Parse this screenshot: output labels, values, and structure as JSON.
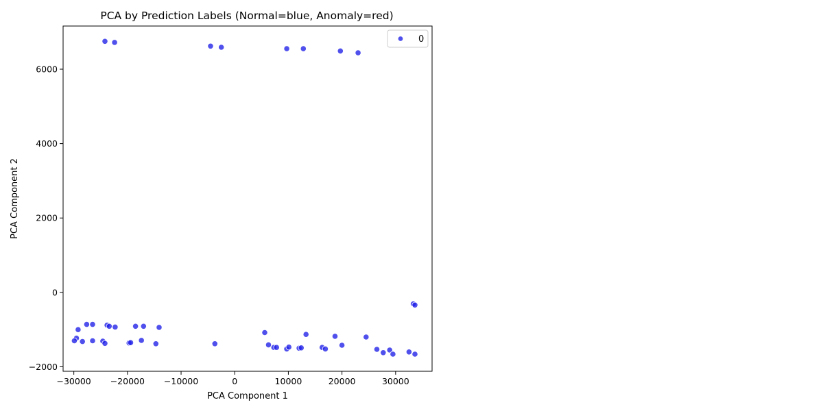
{
  "chart_data": {
    "type": "scatter",
    "title": "PCA by Prediction Labels (Normal=blue, Anomaly=red)",
    "xlabel": "PCA Component 1",
    "ylabel": "PCA Component 2",
    "xlim": [
      -32000,
      36800
    ],
    "ylim": [
      -2120,
      7160
    ],
    "xticks": [
      -30000,
      -20000,
      -10000,
      0,
      10000,
      20000,
      30000
    ],
    "xtick_labels": [
      "−30000",
      "−20000",
      "−10000",
      "0",
      "10000",
      "20000",
      "30000"
    ],
    "yticks": [
      -2000,
      0,
      2000,
      4000,
      6000
    ],
    "ytick_labels": [
      "−2000",
      "0",
      "2000",
      "4000",
      "6000"
    ],
    "grid": false,
    "legend_position": "top-right",
    "series": [
      {
        "name": "0",
        "color": "#1f1fe8",
        "points": [
          [
            -24200,
            6750
          ],
          [
            -22400,
            6720
          ],
          [
            -4500,
            6620
          ],
          [
            -2500,
            6590
          ],
          [
            9700,
            6550
          ],
          [
            12800,
            6550
          ],
          [
            19700,
            6490
          ],
          [
            23000,
            6440
          ],
          [
            -27600,
            -860
          ],
          [
            -26500,
            -860
          ],
          [
            -23800,
            -880
          ],
          [
            -23400,
            -910
          ],
          [
            -22300,
            -930
          ],
          [
            -18500,
            -910
          ],
          [
            -17000,
            -910
          ],
          [
            -14100,
            -940
          ],
          [
            -29200,
            -1000
          ],
          [
            -29500,
            -1230
          ],
          [
            -29900,
            -1300
          ],
          [
            -28400,
            -1320
          ],
          [
            -26500,
            -1300
          ],
          [
            -24600,
            -1310
          ],
          [
            -24200,
            -1370
          ],
          [
            -19700,
            -1360
          ],
          [
            -19400,
            -1350
          ],
          [
            -17400,
            -1290
          ],
          [
            -14700,
            -1380
          ],
          [
            -3700,
            -1380
          ],
          [
            5600,
            -1080
          ],
          [
            6300,
            -1410
          ],
          [
            7300,
            -1480
          ],
          [
            7800,
            -1480
          ],
          [
            9700,
            -1520
          ],
          [
            10100,
            -1470
          ],
          [
            12000,
            -1500
          ],
          [
            12400,
            -1490
          ],
          [
            13300,
            -1130
          ],
          [
            16300,
            -1480
          ],
          [
            16900,
            -1520
          ],
          [
            18700,
            -1180
          ],
          [
            20000,
            -1420
          ],
          [
            24500,
            -1200
          ],
          [
            26500,
            -1530
          ],
          [
            27700,
            -1620
          ],
          [
            28900,
            -1550
          ],
          [
            29500,
            -1660
          ],
          [
            32500,
            -1600
          ],
          [
            33600,
            -1660
          ],
          [
            33300,
            -310
          ],
          [
            33600,
            -340
          ]
        ]
      }
    ]
  }
}
